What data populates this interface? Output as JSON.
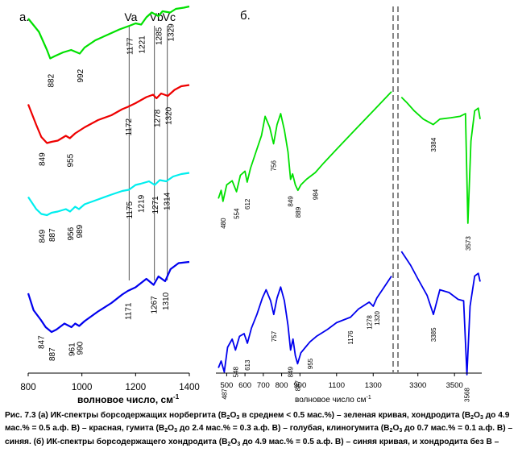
{
  "chart_data": [
    {
      "panel": "а.",
      "type": "line",
      "xlabel": "волновое число, см",
      "xlabel_sup": "-1",
      "xlim": [
        800,
        1400
      ],
      "xticks": [
        800,
        1000,
        1200,
        1400
      ],
      "grid": false,
      "vlines": [
        {
          "label": "Va",
          "x": 1176
        },
        {
          "label": "Vb",
          "x": 1270
        },
        {
          "label": "Vc",
          "x": 1318
        }
      ],
      "series": [
        {
          "color": "#00e000",
          "peaks": [
            "882",
            "992",
            "1177",
            "1221",
            "1285",
            "1329"
          ],
          "x": [
            800,
            840,
            870,
            882,
            900,
            930,
            960,
            992,
            1010,
            1050,
            1100,
            1140,
            1177,
            1200,
            1221,
            1240,
            1260,
            1285,
            1300,
            1329,
            1350,
            1380,
            1400
          ],
          "y": [
            58,
            47,
            32,
            25,
            27,
            30,
            32,
            29,
            34,
            40,
            45,
            49,
            52,
            54,
            53,
            59,
            63,
            60,
            64,
            63,
            66,
            67,
            68
          ]
        },
        {
          "color": "#ee0000",
          "peaks": [
            "849",
            "955",
            "1172",
            "1278",
            "1320"
          ],
          "x": [
            800,
            830,
            849,
            870,
            887,
            910,
            940,
            955,
            975,
            1010,
            1060,
            1110,
            1150,
            1172,
            1200,
            1240,
            1265,
            1278,
            1295,
            1320,
            1345,
            1370,
            1400
          ],
          "y": [
            47,
            30,
            20,
            15,
            16,
            17,
            21,
            19,
            23,
            28,
            34,
            38,
            43,
            45,
            48,
            53,
            55,
            52,
            56,
            54,
            59,
            62,
            63
          ]
        },
        {
          "color": "#00eeee",
          "peaks": [
            "849",
            "887",
            "956",
            "989",
            "1175",
            "1219",
            "1271",
            "1314"
          ],
          "x": [
            800,
            830,
            849,
            870,
            887,
            910,
            940,
            956,
            975,
            989,
            1010,
            1060,
            1110,
            1150,
            1175,
            1200,
            1219,
            1250,
            1271,
            1290,
            1314,
            1340,
            1370,
            1400
          ],
          "y": [
            17,
            7,
            3,
            2,
            4,
            5,
            7,
            5,
            9,
            7,
            11,
            15,
            19,
            22,
            23,
            27,
            28,
            30,
            27,
            31,
            30,
            34,
            36,
            37
          ]
        },
        {
          "color": "#0000ee",
          "peaks": [
            "847",
            "887",
            "961",
            "990",
            "1171",
            "1267",
            "1310"
          ],
          "x": [
            800,
            820,
            847,
            865,
            887,
            905,
            935,
            961,
            975,
            990,
            1010,
            1060,
            1110,
            1150,
            1171,
            1200,
            1240,
            1267,
            1285,
            1310,
            1330,
            1360,
            1400
          ],
          "y": [
            -16,
            -30,
            -38,
            -44,
            -48,
            -46,
            -41,
            -44,
            -41,
            -43,
            -39,
            -31,
            -24,
            -17,
            -14,
            -11,
            -4,
            -9,
            -2,
            -6,
            4,
            9,
            10
          ]
        }
      ]
    },
    {
      "panel": "б.",
      "type": "line",
      "xlabel": "волновое число см",
      "xlabel_sup": "-1",
      "segments": [
        {
          "xlim": [
            450,
            1400
          ],
          "xticks": [
            500,
            600,
            700,
            800,
            900,
            1100,
            1300
          ]
        },
        {
          "xlim": [
            3200,
            3640
          ],
          "xticks": [
            3300,
            3500
          ]
        }
      ],
      "grid": false,
      "series": [
        {
          "color": "#00e000",
          "peaks": [
            "480",
            "554",
            "612",
            "756",
            "849",
            "889",
            "984",
            "3384",
            "3573"
          ],
          "x": [
            455,
            470,
            480,
            500,
            530,
            554,
            575,
            600,
            612,
            630,
            660,
            690,
            710,
            735,
            756,
            775,
            795,
            815,
            835,
            849,
            860,
            875,
            889,
            905,
            935,
            984,
            1030,
            1100,
            1200,
            1300,
            1400,
            3210,
            3240,
            3280,
            3330,
            3384,
            3420,
            3480,
            3530,
            3560,
            3573,
            3590,
            3610,
            3630,
            3640
          ],
          "y": [
            8,
            14,
            6,
            18,
            21,
            13,
            25,
            28,
            20,
            30,
            42,
            54,
            68,
            60,
            48,
            62,
            70,
            58,
            42,
            22,
            26,
            18,
            14,
            18,
            22,
            27,
            34,
            44,
            58,
            72,
            86,
            82,
            78,
            72,
            66,
            62,
            66,
            67,
            68,
            70,
            -10,
            50,
            72,
            74,
            66
          ]
        },
        {
          "color": "#0000ee",
          "peaks": [
            "487",
            "548",
            "613",
            "757",
            "849",
            "887",
            "955",
            "1176",
            "1278",
            "1320",
            "3385",
            "3568"
          ],
          "x": [
            455,
            470,
            487,
            505,
            530,
            548,
            570,
            595,
            613,
            635,
            665,
            695,
            715,
            740,
            757,
            775,
            795,
            815,
            835,
            849,
            862,
            875,
            887,
            905,
            930,
            955,
            990,
            1050,
            1100,
            1176,
            1220,
            1278,
            1300,
            1320,
            1360,
            1400,
            3210,
            3230,
            3260,
            3300,
            3350,
            3385,
            3420,
            3470,
            3520,
            3550,
            3568,
            3585,
            3610,
            3630,
            3640
          ],
          "y": [
            -45,
            -40,
            -48,
            -30,
            -24,
            -32,
            -22,
            -20,
            -27,
            -16,
            -6,
            6,
            12,
            4,
            -6,
            6,
            14,
            4,
            -14,
            -32,
            -24,
            -36,
            -42,
            -34,
            -30,
            -26,
            -22,
            -17,
            -12,
            -8,
            -2,
            3,
            0,
            6,
            14,
            22,
            40,
            36,
            30,
            20,
            8,
            -6,
            12,
            10,
            5,
            4,
            -50,
            0,
            22,
            24,
            18
          ]
        }
      ]
    }
  ],
  "caption": {
    "p1": "Рис. 7.3 (а) ИК-спектры борсодержащих норбергита (B",
    "p2": "O",
    "p3": " в среднем < 0.5 мас.%) – зеленая кривая, хондродита (B",
    "p4": "O",
    "p5": " до 4.9 мас.% = 0.5 а.ф. B) – красная, гумита (B",
    "p6": "O",
    "p7": " до 2.4 мас.% = 0.3 а.ф. B) – голубая, клиногумита (B",
    "p8": "O",
    "p9": " до 0.7 мас.% = 0.1 а.ф. B) –синяя. (б) ИК-спектры борсодержащего хондродита (B",
    "p10": "O",
    "p11": " до 4.9 мас.% = 0.5 а.ф. B) – синяя кривая, и хондродита без B –",
    "sub2": "2",
    "sub3": "3"
  }
}
